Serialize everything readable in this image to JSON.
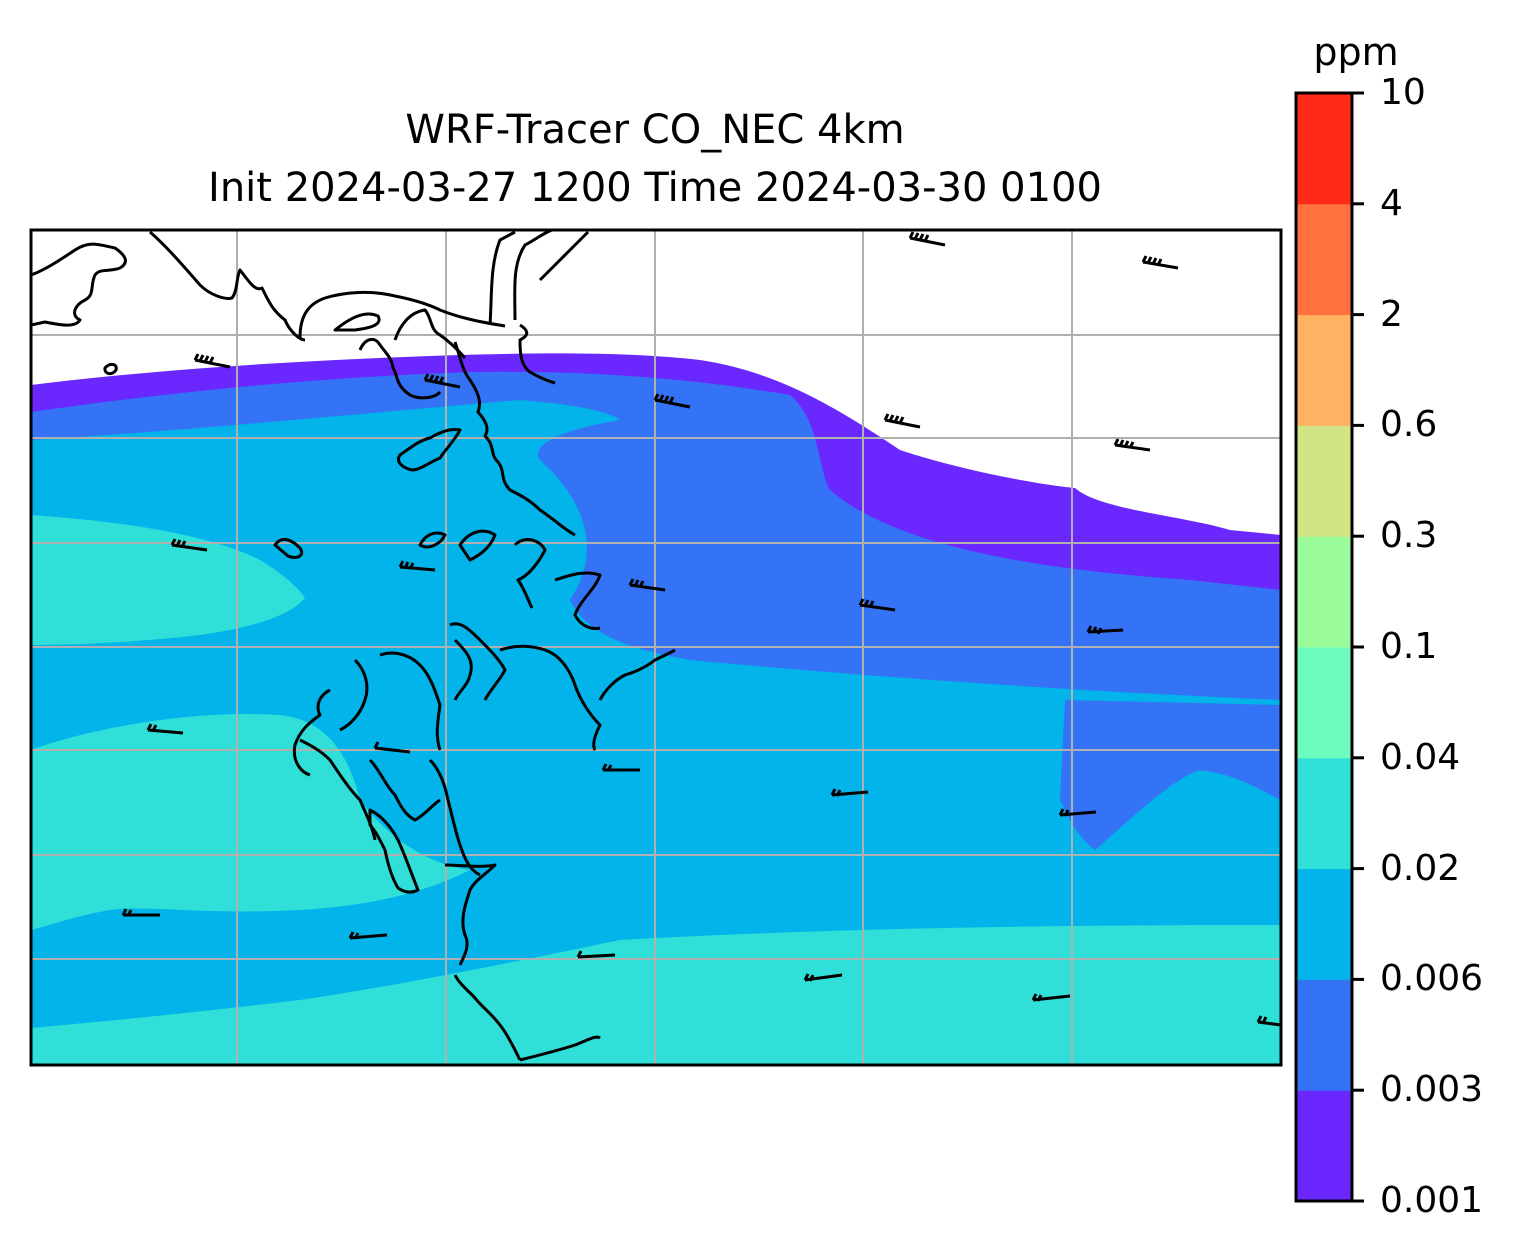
{
  "title": {
    "line1": "WRF-Tracer CO_NEC 4km",
    "line2": "Init 2024-03-27 1200 Time 2024-03-30 0100"
  },
  "colorbar": {
    "label": "ppm",
    "levels": [
      "0.001",
      "0.003",
      "0.006",
      "0.02",
      "0.04",
      "0.1",
      "0.3",
      "0.6",
      "2",
      "4",
      "10"
    ],
    "colors": [
      "#6a28ff",
      "#3473f5",
      "#02b4ea",
      "#30e0d8",
      "#6cfcbe",
      "#9bfc9c",
      "#d1e486",
      "#feb262",
      "#ff713e",
      "#ff2a17"
    ]
  },
  "map": {
    "field": "CO_NEC",
    "overlays": [
      "coastline",
      "gridlines",
      "wind-barbs"
    ],
    "gridline_color": "#b0b0b0"
  }
}
